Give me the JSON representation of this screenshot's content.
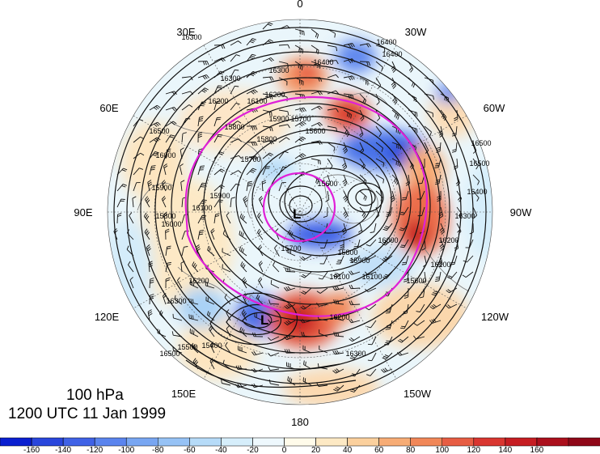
{
  "title": {
    "level": "100 hPa",
    "time": "1200 UTC 11 Jan 1999"
  },
  "longitude_labels": [
    {
      "id": "0",
      "text": "0"
    },
    {
      "id": "30w",
      "text": "30W"
    },
    {
      "id": "60w",
      "text": "60W"
    },
    {
      "id": "90w",
      "text": "90W"
    },
    {
      "id": "120w",
      "text": "120W"
    },
    {
      "id": "150w",
      "text": "150W"
    },
    {
      "id": "180",
      "text": "180"
    },
    {
      "id": "150e",
      "text": "150E"
    },
    {
      "id": "120e",
      "text": "120E"
    },
    {
      "id": "90e",
      "text": "90E"
    },
    {
      "id": "60e",
      "text": "60E"
    },
    {
      "id": "30e",
      "text": "30E"
    }
  ],
  "low_centers": [
    {
      "id": "polar",
      "text": "L"
    },
    {
      "id": "pacific",
      "text": "L"
    }
  ],
  "contour_labels": [
    "16300",
    "16400",
    "16300",
    "16200",
    "16100",
    "16200",
    "16300",
    "16400",
    "16500",
    "16500",
    "16400",
    "16300",
    "16200",
    "16100",
    "15600",
    "15700",
    "16000",
    "16100",
    "15900",
    "15800",
    "15700",
    "16500",
    "16000",
    "15900",
    "15800",
    "15600",
    "15700",
    "15800",
    "16100",
    "16000",
    "15900",
    "16200",
    "16300",
    "15900",
    "15800",
    "15600",
    "16400",
    "16500",
    "16100",
    "16200",
    "16300",
    "15500",
    "15400"
  ],
  "colorbar": {
    "colors": [
      "#0a1fd0",
      "#2946dc",
      "#3f62e6",
      "#5a84ee",
      "#78a6f2",
      "#96c2f5",
      "#b6dbf8",
      "#d6eefb",
      "#eef8fd",
      "#fffbea",
      "#fde9c4",
      "#fbd09d",
      "#f7ac75",
      "#f18758",
      "#e75d43",
      "#d93630",
      "#c61d22",
      "#ab0f1c",
      "#8f0718"
    ],
    "ticks": [
      "-160",
      "-140",
      "-120",
      "-100",
      "-80",
      "-60",
      "-40",
      "-20",
      "0",
      "20",
      "40",
      "60",
      "80",
      "100",
      "120",
      "140",
      "160"
    ]
  }
}
